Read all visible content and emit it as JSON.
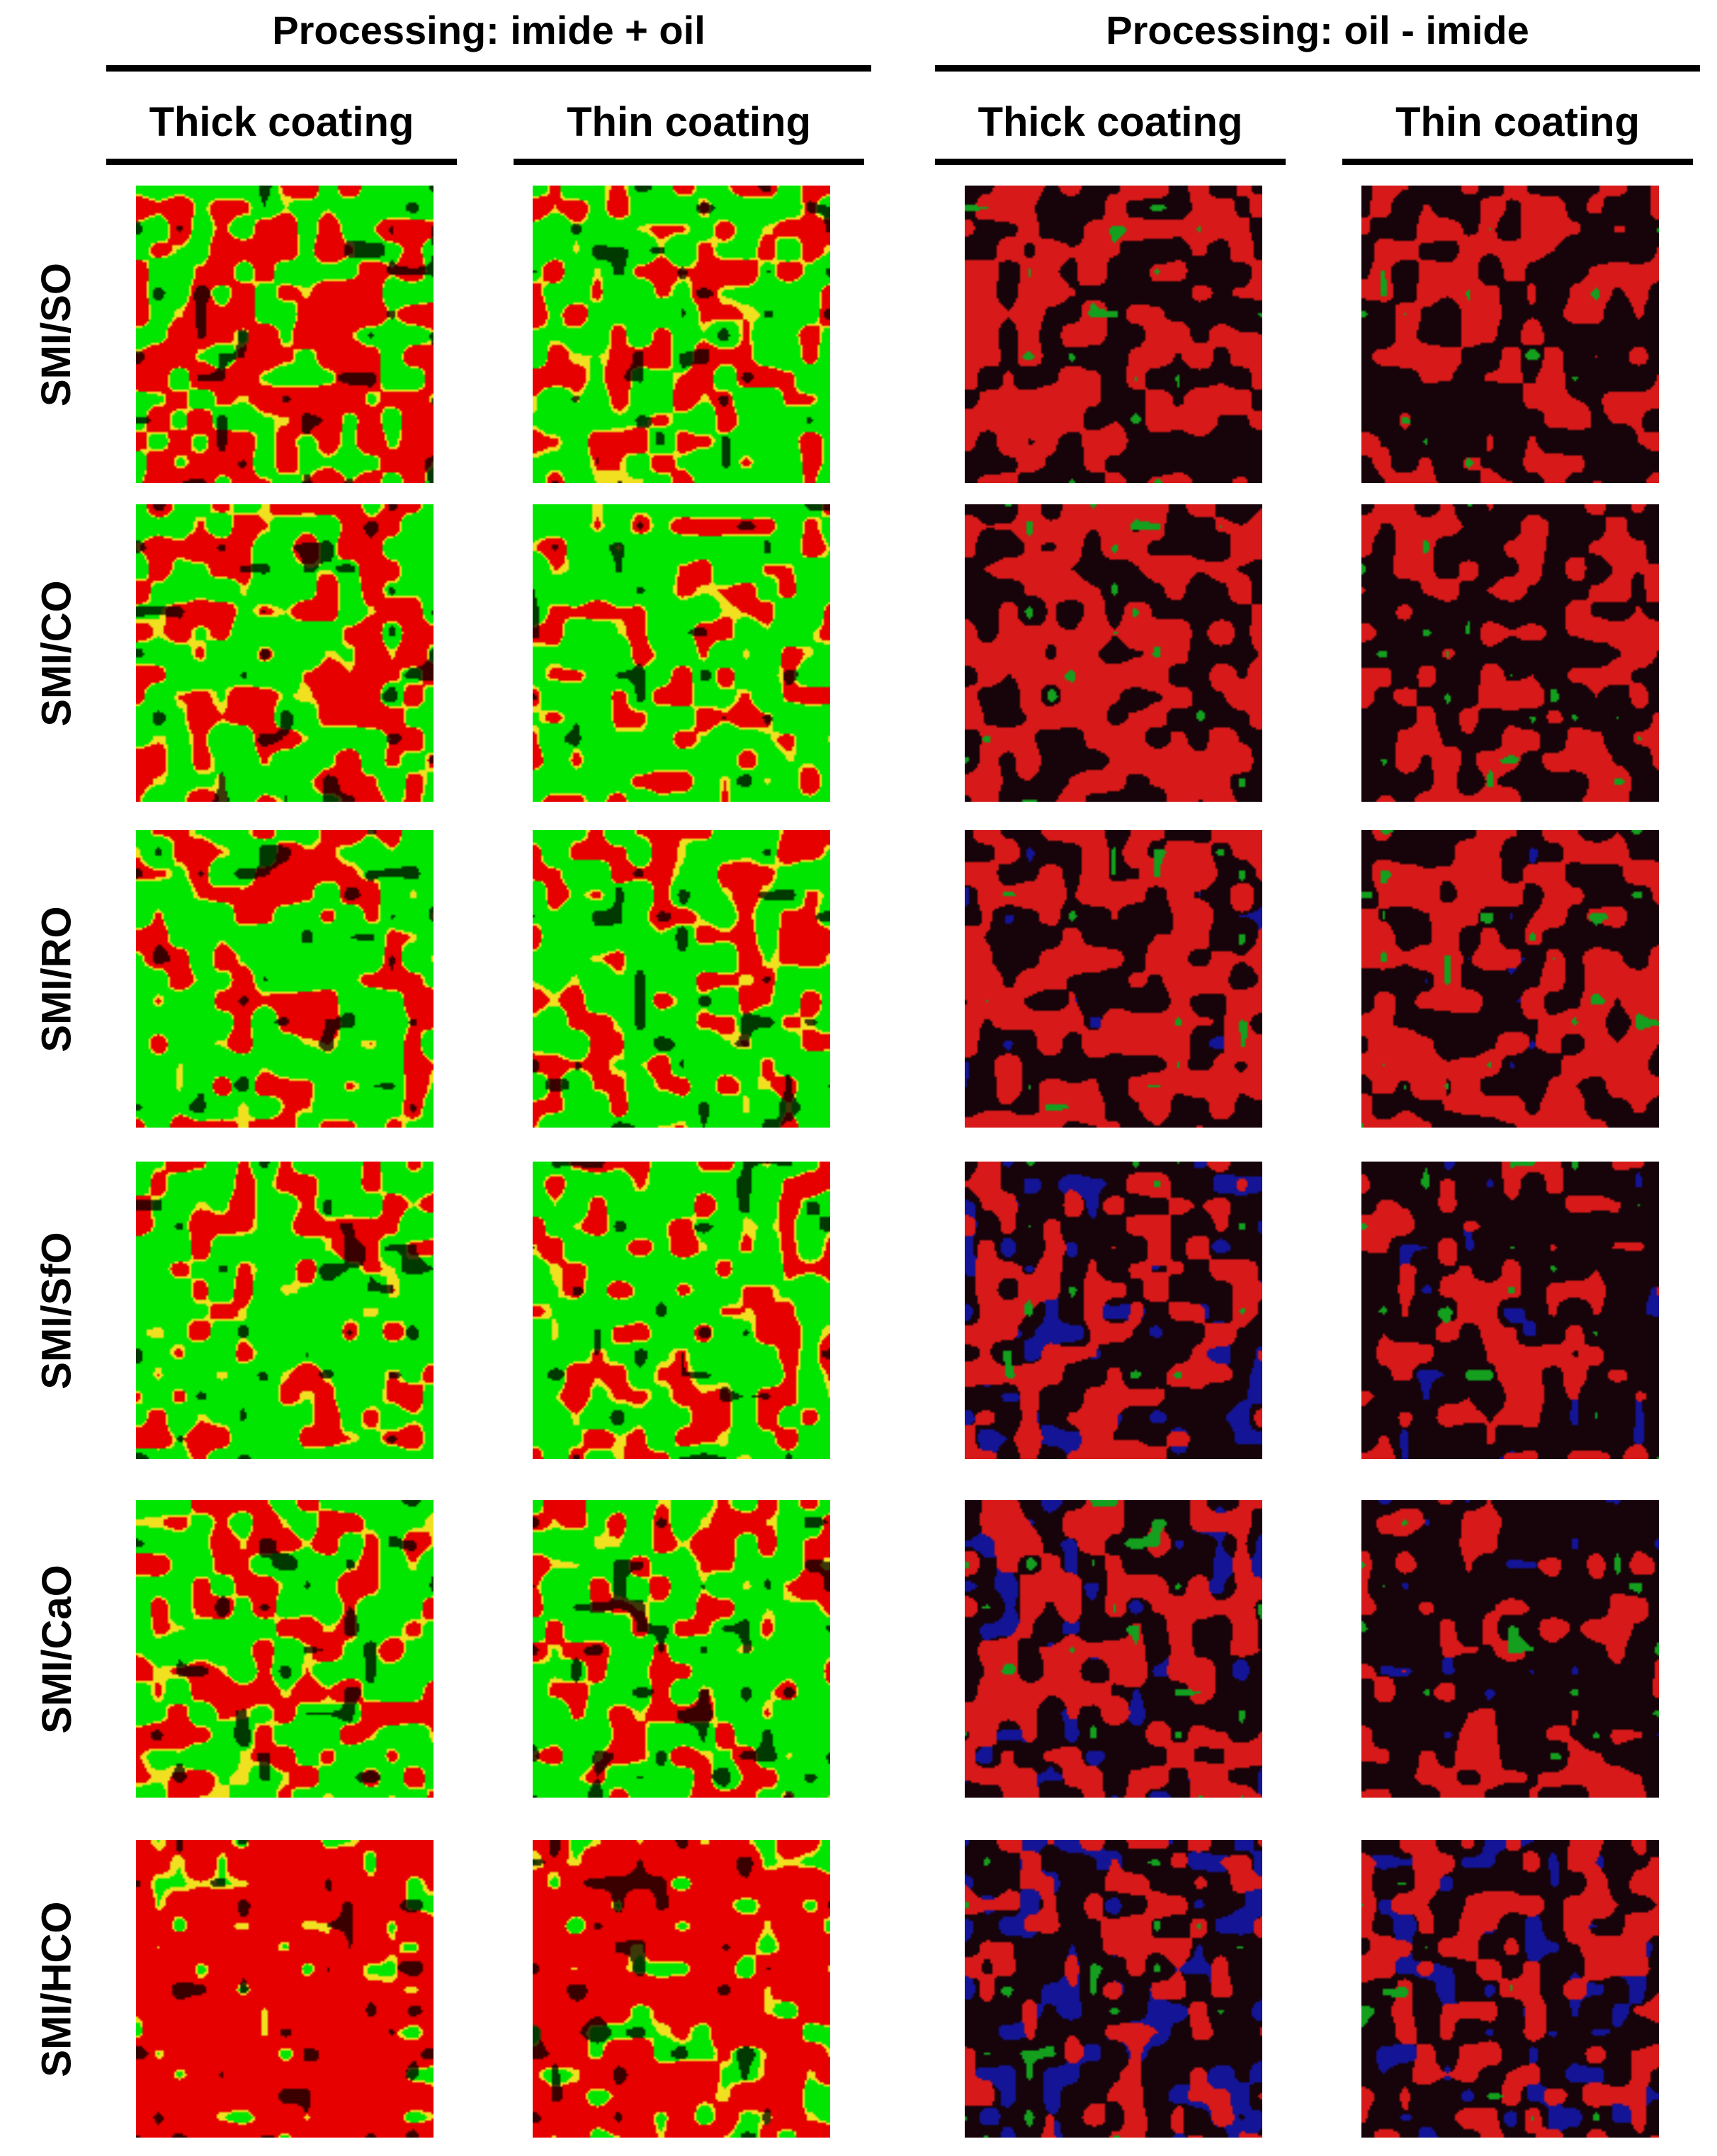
{
  "figure": {
    "groups": [
      {
        "title": "Processing: imide + oil"
      },
      {
        "title": "Processing: oil - imide"
      }
    ],
    "columns": [
      {
        "label": "Thick coating"
      },
      {
        "label": "Thin coating"
      },
      {
        "label": "Thick coating"
      },
      {
        "label": "Thin coating"
      }
    ],
    "rows": [
      {
        "label": "SMI/SO"
      },
      {
        "label": "SMI/CO"
      },
      {
        "label": "SMI/RO"
      },
      {
        "label": "SMI/SfO"
      },
      {
        "label": "SMI/CaO"
      },
      {
        "label": "SMI/HCO"
      }
    ],
    "palettes": {
      "imide_oil": {
        "primary": "#00e600",
        "secondary": "#e60000",
        "mid": "#f0e020",
        "dark": "#000000"
      },
      "oil_imide": {
        "primary": "#e01010",
        "secondary": "#1010c8",
        "mid": "#10b010",
        "dark": "#060006"
      }
    }
  }
}
